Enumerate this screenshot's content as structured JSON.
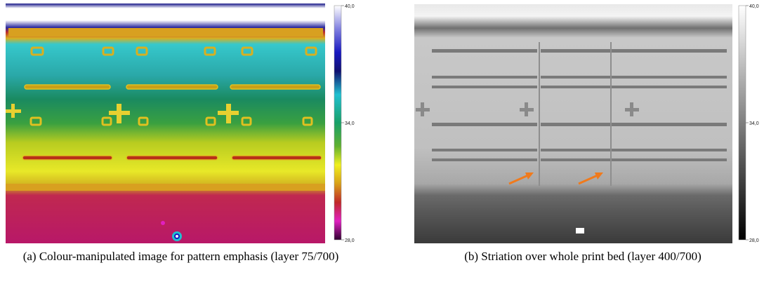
{
  "figures": [
    {
      "id": "a",
      "caption": "(a) Colour-manipulated image for pattern emphasis (layer 75/700)",
      "colorbar": {
        "max_label": "40,0",
        "mid_label": "34,0",
        "min_label": "28,0",
        "scale": "iron-rainbow"
      }
    },
    {
      "id": "b",
      "caption": "(b) Striation over whole print bed (layer 400/700)",
      "colorbar": {
        "max_label": "40,0",
        "mid_label": "34,0",
        "min_label": "28,0",
        "scale": "grayscale"
      },
      "annotation_color": "#f07a1c"
    }
  ]
}
